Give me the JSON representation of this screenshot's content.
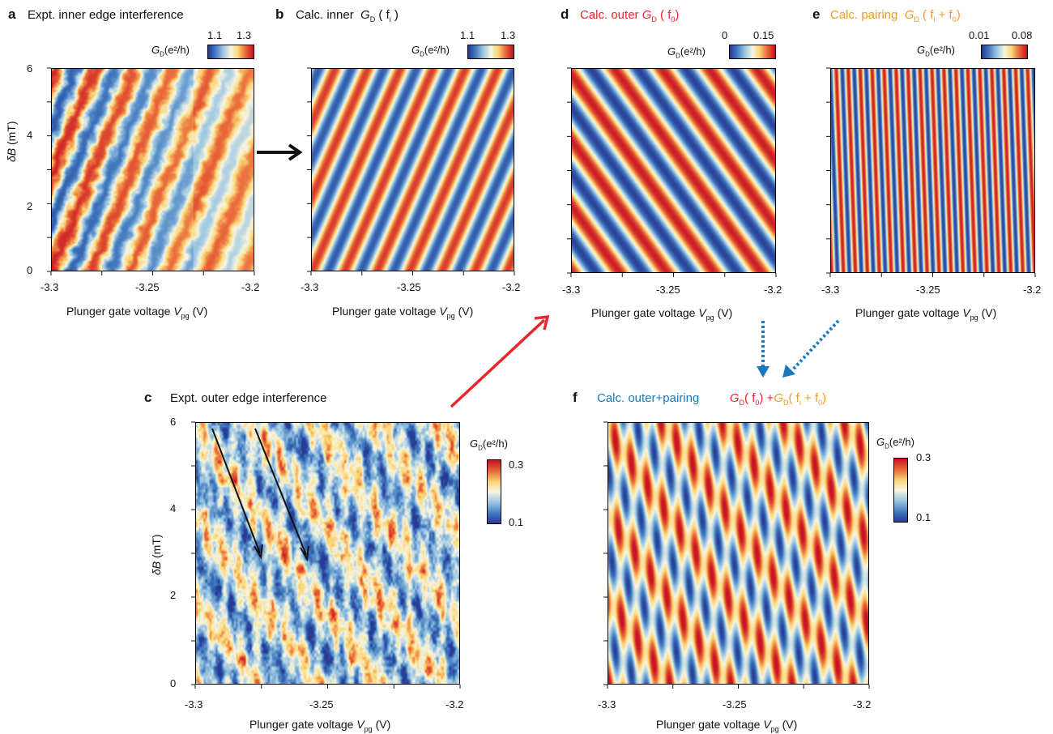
{
  "panel_labels": {
    "a": "a",
    "b": "b",
    "c": "c",
    "d": "d",
    "e": "e",
    "f": "f"
  },
  "titles": {
    "a": "Expt.  inner edge interference",
    "b_prefix": "Calc. inner",
    "c": "Expt.  outer edge interference",
    "d_prefix": "Calc. outer",
    "e_prefix": "Calc. pairing",
    "f_prefix": "Calc. outer+pairing"
  },
  "symbols": {
    "G": "G",
    "D": "D",
    "units": "(e²/h)",
    "fi": "f",
    "fi_sub": "i",
    "f0": "f",
    "f0_sub": "0",
    "plus": "+"
  },
  "axes": {
    "xlabel": "Plunger gate voltage",
    "xlabel_var": "V",
    "xlabel_sub": "pg",
    "xlabel_unit": "(V)",
    "ylabel": "δB (mT)",
    "xticks": [
      "-3.3",
      "-3.25",
      "-3.2"
    ],
    "yticks": [
      "0",
      "2",
      "4",
      "6"
    ]
  },
  "colorbars": {
    "a": {
      "min": "1.1",
      "max": "1.3"
    },
    "b": {
      "min": "1.1",
      "max": "1.3"
    },
    "d": {
      "min": "0",
      "max": "0.15"
    },
    "e": {
      "min": "0.01",
      "max": "0.08"
    },
    "c": {
      "min": "0.1",
      "max": "0.3"
    },
    "f": {
      "min": "0.1",
      "max": "0.3"
    }
  },
  "colors": {
    "red": "#e8262b",
    "orange": "#f09a28",
    "blue": "#1b78bd",
    "arrow_red": "#e8262b",
    "arrow_blue": "#1b78bd"
  },
  "chart_data": [
    {
      "panel": "a",
      "type": "heatmap",
      "xlim": [
        -3.3,
        -3.2
      ],
      "ylim": [
        0,
        6
      ],
      "clim": [
        1.1,
        1.3
      ],
      "fringe": "positive-slope, noisy",
      "cmap": "RdYlBu_r"
    },
    {
      "panel": "b",
      "type": "heatmap",
      "xlim": [
        -3.3,
        -3.2
      ],
      "ylim": [
        0,
        6
      ],
      "clim": [
        1.1,
        1.3
      ],
      "fringe": "positive-slope",
      "cmap": "RdYlBu_r"
    },
    {
      "panel": "c",
      "type": "heatmap",
      "xlim": [
        -3.3,
        -3.2
      ],
      "ylim": [
        0,
        6
      ],
      "clim": [
        0.1,
        0.3
      ],
      "fringe": "negative-slope, noisy",
      "cmap": "RdYlBu_r"
    },
    {
      "panel": "d",
      "type": "heatmap",
      "xlim": [
        -3.3,
        -3.2
      ],
      "ylim": [
        0,
        6
      ],
      "clim": [
        0,
        0.15
      ],
      "fringe": "negative-slope",
      "cmap": "RdYlBu_r"
    },
    {
      "panel": "e",
      "type": "heatmap",
      "xlim": [
        -3.3,
        -3.2
      ],
      "ylim": [
        0,
        6
      ],
      "clim": [
        0.01,
        0.08
      ],
      "fringe": "near-vertical",
      "cmap": "RdYlBu_r"
    },
    {
      "panel": "f",
      "type": "heatmap",
      "xlim": [
        -3.3,
        -3.2
      ],
      "ylim": [
        0,
        6
      ],
      "clim": [
        0.1,
        0.3
      ],
      "fringe": "sum of d and e",
      "cmap": "RdYlBu_r"
    }
  ]
}
